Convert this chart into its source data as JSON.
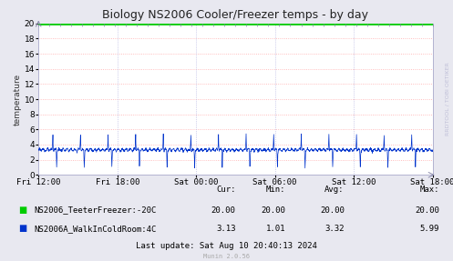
{
  "title": "Biology NS2006 Cooler/Freezer temps - by day",
  "ylabel": "temperature",
  "background_color": "#e8e8f0",
  "plot_bg_color": "#ffffff",
  "grid_color_h": "#ffaaaa",
  "grid_color_v": "#aaaadd",
  "ylim": [
    0,
    20
  ],
  "yticks": [
    0,
    2,
    4,
    6,
    8,
    10,
    12,
    14,
    16,
    18,
    20
  ],
  "xtick_labels": [
    "Fri 12:00",
    "Fri 18:00",
    "Sat 00:00",
    "Sat 06:00",
    "Sat 12:00",
    "Sat 18:00"
  ],
  "freezer_color": "#00cc00",
  "freezer_value": 20.0,
  "cold_room_color": "#0033cc",
  "legend_items": [
    {
      "label": "NS2006_TeeterFreezer:-20C",
      "color": "#00cc00"
    },
    {
      "label": "NS2006A_WalkInColdRoom:4C",
      "color": "#0033cc"
    }
  ],
  "stats_header": [
    "Cur:",
    "Min:",
    "Avg:",
    "Max:"
  ],
  "stats_row1": [
    "20.00",
    "20.00",
    "20.00",
    "20.00"
  ],
  "stats_row2": [
    "3.13",
    "1.01",
    "3.32",
    "5.99"
  ],
  "last_update": "Last update: Sat Aug 10 20:40:13 2024",
  "munin_version": "Munin 2.0.56",
  "watermark": "RRDTOOL / TOBI OETIKER",
  "title_fontsize": 9,
  "axis_fontsize": 6.5,
  "legend_fontsize": 6.5,
  "stats_fontsize": 6.5
}
